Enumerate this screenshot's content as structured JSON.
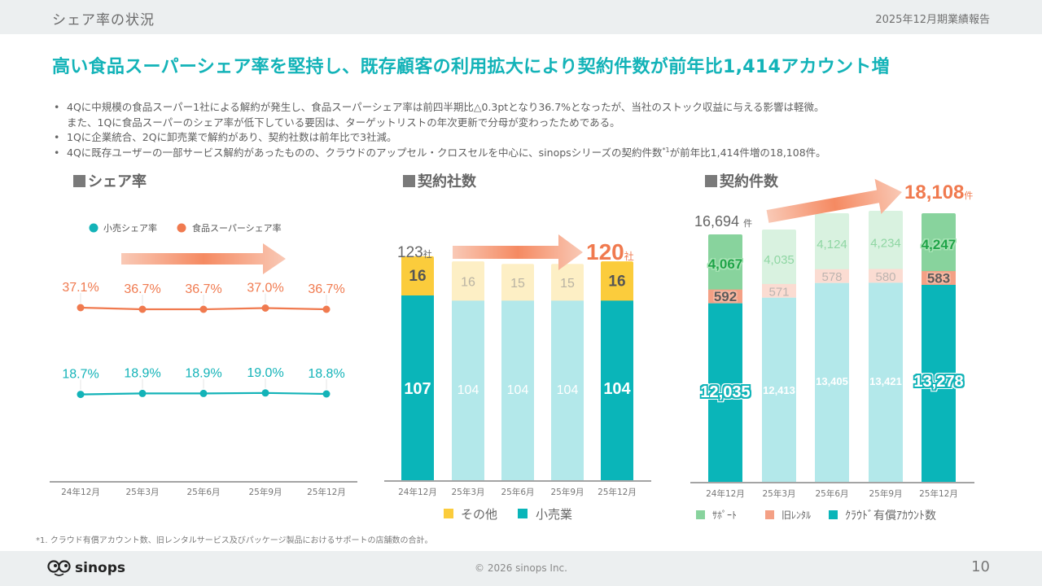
{
  "header": {
    "section_title": "シェア率の状況",
    "report_title": "2025年12月期業績報告"
  },
  "headline": "高い食品スーパーシェア率を堅持し、既存顧客の利用拡大により契約件数が前年比1,414アカウント増",
  "bullets": [
    {
      "line1": "4Qに中規模の食品スーパー1社による解約が発生し、食品スーパーシェア率は前四半期比△0.3ptとなり36.7%となったが、当社のストック収益に与える影響は軽微。",
      "line2": "また、1Qに食品スーパーのシェア率が低下している要因は、ターゲットリストの年次更新で分母が変わったためである。"
    },
    {
      "line1": "1Qに企業統合、2Qに卸売業で解約があり、契約社数は前年比で3社減。"
    },
    {
      "pre": "4Qに既存ユーザーの一部サービス解約があったものの、クラウドのアップセル・クロスセルを中心に、sinopsシリーズの契約件数",
      "sup": "*1",
      "post": "が前年比1,414件増の18,108件。"
    }
  ],
  "colors": {
    "teal": "#0ab5b9",
    "teal_light": "#b3e8ea",
    "orange": "#f07a4f",
    "yellow": "#fbcc3c",
    "yellow_light": "#fdefc5",
    "green": "#88d39d",
    "green_light": "#d9f2e0",
    "salmon": "#f4a085",
    "salmon_light": "#fbdcd2",
    "headline": "#13b3b8"
  },
  "chart_data": [
    {
      "type": "line",
      "title": "■シェア率",
      "title_text": "シェア率",
      "categories": [
        "24年12月",
        "25年3月",
        "25年6月",
        "25年9月",
        "25年12月"
      ],
      "series": [
        {
          "name": "小売シェア率",
          "values": [
            18.7,
            18.9,
            18.9,
            19.0,
            18.8
          ],
          "labels": [
            "18.7%",
            "18.9%",
            "18.9%",
            "19.0%",
            "18.8%"
          ],
          "color": "#13b3b8"
        },
        {
          "name": "食品スーパーシェア率",
          "values": [
            37.1,
            36.7,
            36.7,
            37.0,
            36.7
          ],
          "labels": [
            "37.1%",
            "36.7%",
            "36.7%",
            "37.0%",
            "36.7%"
          ],
          "color": "#f07a4f"
        }
      ],
      "legend": "top-center",
      "xlabel": "",
      "ylabel": "",
      "grid": false
    },
    {
      "type": "bar",
      "stacked": true,
      "title": "■契約社数",
      "title_text": "契約社数",
      "categories": [
        "24年12月",
        "25年3月",
        "25年6月",
        "25年9月",
        "25年12月"
      ],
      "series": [
        {
          "name": "小売業",
          "values": [
            107,
            104,
            104,
            104,
            104
          ]
        },
        {
          "name": "その他",
          "values": [
            16,
            16,
            15,
            15,
            16
          ]
        }
      ],
      "highlighted": [
        true,
        false,
        false,
        false,
        true
      ],
      "annotation_start": {
        "value": "123",
        "unit": "社"
      },
      "annotation_end": {
        "value": "120",
        "unit": "社"
      },
      "legend": "bottom",
      "ylim": [
        0,
        125
      ],
      "grid": false
    },
    {
      "type": "bar",
      "stacked": true,
      "title": "■契約件数",
      "title_text": "契約件数",
      "categories": [
        "24年12月",
        "25年3月",
        "25年6月",
        "25年9月",
        "25年12月"
      ],
      "series": [
        {
          "name": "クラウド有償アカウント数",
          "legend_label": "ｸﾗｳﾄﾞ有償ｱｶｳﾝﾄ数",
          "values": [
            12035,
            12413,
            13405,
            13421,
            13278
          ],
          "labels": [
            "12,035",
            "12,413",
            "13,405",
            "13,421",
            "13,278"
          ]
        },
        {
          "name": "旧レンタル",
          "legend_label": "旧ﾚﾝﾀﾙ",
          "values": [
            592,
            571,
            578,
            580,
            583
          ],
          "labels": [
            "592",
            "571",
            "578",
            "580",
            "583"
          ]
        },
        {
          "name": "サポート",
          "legend_label": "ｻﾎﾟｰﾄ",
          "values": [
            4067,
            4035,
            4124,
            4234,
            4247
          ],
          "labels": [
            "4,067",
            "4,035",
            "4,124",
            "4,234",
            "4,247"
          ]
        }
      ],
      "highlighted": [
        true,
        false,
        false,
        false,
        true
      ],
      "annotation_start": {
        "value": "16,694",
        "unit": "件"
      },
      "annotation_end": {
        "value": "18,108",
        "unit": "件"
      },
      "legend": "bottom",
      "ylim": [
        0,
        18500
      ],
      "grid": false
    }
  ],
  "footnote": "*1. クラウド有償アカウント数、旧レンタルサービス及びパッケージ製品におけるサポートの店舗数の合計。",
  "footer": {
    "logo_text": "sinops",
    "copyright": "© 2026 sinops Inc.",
    "page_number": "10"
  }
}
